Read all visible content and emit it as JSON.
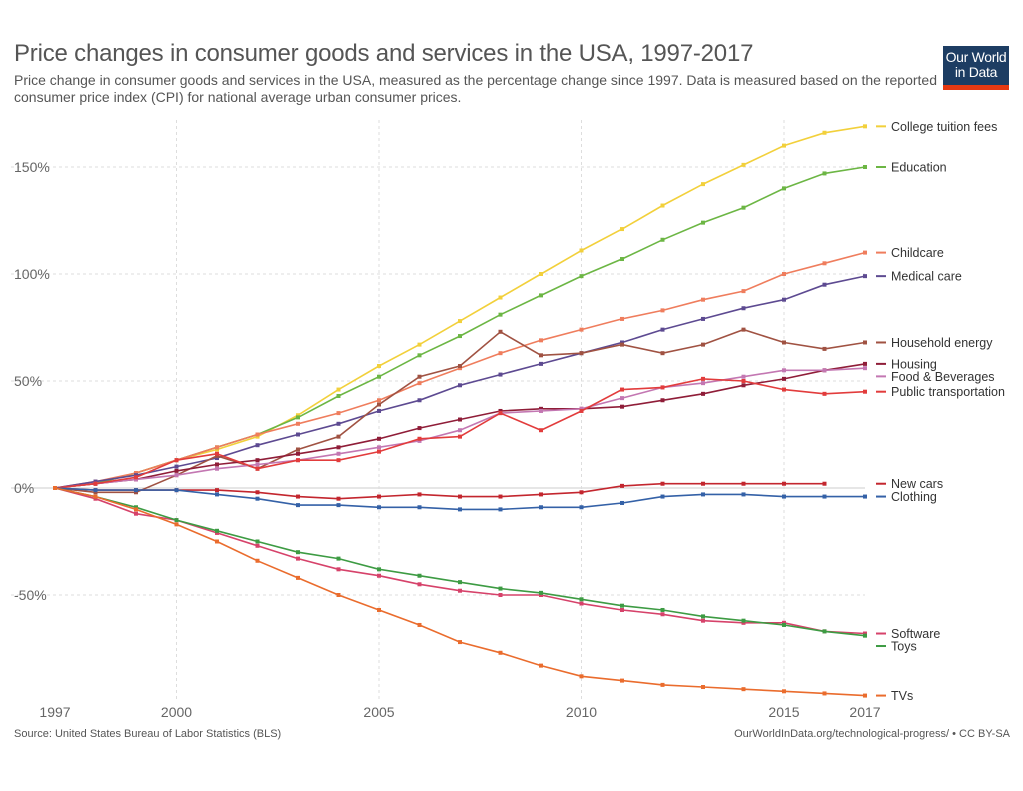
{
  "header": {
    "title": "Price changes in consumer goods and services in the USA, 1997-2017",
    "subtitle": "Price change in consumer goods and services in the USA, measured as the percentage change since 1997. Data is measured based on the reported consumer price index (CPI) for national average urban consumer prices.",
    "logo_line1": "Our World",
    "logo_line2": "in Data"
  },
  "footer": {
    "source": "Source: United States Bureau of Labor Statistics (BLS)",
    "credit": "OurWorldInData.org/technological-progress/ • CC BY-SA"
  },
  "chart_data": {
    "type": "line",
    "title": "Price changes in consumer goods and services in the USA, 1997-2017",
    "xlabel": "",
    "ylabel": "",
    "xlim": [
      1997,
      2017
    ],
    "ylim": [
      -95,
      170
    ],
    "x_ticks": [
      1997,
      2000,
      2005,
      2010,
      2015,
      2017
    ],
    "y_ticks": [
      -50,
      0,
      50,
      100,
      150
    ],
    "y_tick_labels": [
      "-50%",
      "0%",
      "50%",
      "100%",
      "150%"
    ],
    "grid": "dashed",
    "legend": "right",
    "x": [
      1997,
      1998,
      1999,
      2000,
      2001,
      2002,
      2003,
      2004,
      2005,
      2006,
      2007,
      2008,
      2009,
      2010,
      2011,
      2012,
      2013,
      2014,
      2015,
      2016,
      2017
    ],
    "series": [
      {
        "name": "College tuition fees",
        "color": "#f2d03b",
        "values": [
          0,
          2,
          7,
          13,
          18,
          24,
          34,
          46,
          57,
          67,
          78,
          89,
          100,
          111,
          121,
          132,
          142,
          151,
          160,
          166,
          169
        ]
      },
      {
        "name": "Education",
        "color": "#6cb644",
        "values": [
          0,
          2,
          7,
          13,
          19,
          25,
          33,
          43,
          52,
          62,
          71,
          81,
          90,
          99,
          107,
          116,
          124,
          131,
          140,
          147,
          150
        ]
      },
      {
        "name": "Childcare",
        "color": "#ef7d5d",
        "values": [
          0,
          3,
          7,
          13,
          19,
          25,
          30,
          35,
          41,
          49,
          56,
          63,
          69,
          74,
          79,
          83,
          88,
          92,
          100,
          105,
          110
        ]
      },
      {
        "name": "Medical care",
        "color": "#5d4a91",
        "values": [
          0,
          3,
          6,
          10,
          14,
          20,
          25,
          30,
          36,
          41,
          48,
          53,
          58,
          63,
          68,
          74,
          79,
          84,
          88,
          95,
          99
        ]
      },
      {
        "name": "Household energy",
        "color": "#a05242",
        "values": [
          0,
          -2,
          -2,
          6,
          15,
          9,
          18,
          24,
          39,
          52,
          57,
          73,
          62,
          63,
          67,
          63,
          67,
          74,
          68,
          65,
          68
        ]
      },
      {
        "name": "Housing",
        "color": "#8f1d38",
        "values": [
          0,
          2,
          4,
          8,
          11,
          13,
          16,
          19,
          23,
          28,
          32,
          36,
          37,
          37,
          38,
          41,
          44,
          48,
          51,
          55,
          58
        ]
      },
      {
        "name": "Food & Beverages",
        "color": "#c377b2",
        "values": [
          0,
          2,
          4,
          6,
          9,
          11,
          13,
          16,
          19,
          22,
          27,
          35,
          36,
          37,
          42,
          47,
          49,
          52,
          55,
          55,
          56
        ]
      },
      {
        "name": "Public transportation",
        "color": "#e23c3c",
        "values": [
          0,
          2,
          5,
          13,
          16,
          9,
          13,
          13,
          17,
          23,
          24,
          35,
          27,
          36,
          46,
          47,
          51,
          50,
          46,
          44,
          45
        ]
      },
      {
        "name": "New cars",
        "color": "#c3262e",
        "values": [
          0,
          -1,
          -1,
          -1,
          -1,
          -2,
          -4,
          -5,
          -4,
          -3,
          -4,
          -4,
          -3,
          -2,
          1,
          2,
          2,
          2,
          2,
          2,
          null
        ]
      },
      {
        "name": "Clothing",
        "color": "#3461a7",
        "values": [
          0,
          -1,
          -1,
          -1,
          -3,
          -5,
          -8,
          -8,
          -9,
          -9,
          -10,
          -10,
          -9,
          -9,
          -7,
          -4,
          -3,
          -3,
          -4,
          -4,
          -4
        ]
      },
      {
        "name": "Software",
        "color": "#d6426a",
        "values": [
          0,
          -5,
          -12,
          -15,
          -21,
          -27,
          -33,
          -38,
          -41,
          -45,
          -48,
          -50,
          -50,
          -54,
          -57,
          -59,
          -62,
          -63,
          -63,
          -67,
          -68
        ]
      },
      {
        "name": "Toys",
        "color": "#3d9b43",
        "values": [
          0,
          -4,
          -9,
          -15,
          -20,
          -25,
          -30,
          -33,
          -38,
          -41,
          -44,
          -47,
          -49,
          -52,
          -55,
          -57,
          -60,
          -62,
          -64,
          -67,
          -69
        ]
      },
      {
        "name": "TVs",
        "color": "#ea6c2d",
        "values": [
          0,
          -4,
          -10,
          -17,
          -25,
          -34,
          -42,
          -50,
          -57,
          -64,
          -72,
          -77,
          -83,
          -88,
          -90,
          -92,
          -93,
          -94,
          -95,
          -96,
          -97
        ]
      }
    ]
  }
}
